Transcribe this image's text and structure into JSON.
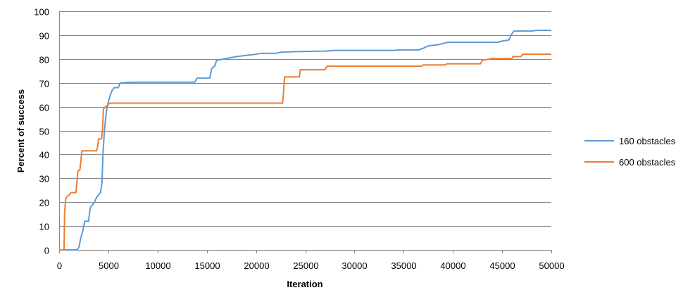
{
  "chart_data": {
    "type": "line",
    "title": "",
    "xlabel": "Iteration",
    "ylabel": "Percent of success",
    "xlim": [
      0,
      50000
    ],
    "ylim": [
      0,
      100
    ],
    "x_ticks": [
      0,
      5000,
      10000,
      15000,
      20000,
      25000,
      30000,
      35000,
      40000,
      45000,
      50000
    ],
    "y_ticks": [
      0,
      10,
      20,
      30,
      40,
      50,
      60,
      70,
      80,
      90,
      100
    ],
    "grid": "horizontal",
    "legend_position": "right",
    "series": [
      {
        "name": "160 obstacles",
        "color": "#5B9BD5",
        "points": [
          [
            0,
            0
          ],
          [
            1800,
            0
          ],
          [
            2000,
            1
          ],
          [
            2100,
            3
          ],
          [
            2200,
            5
          ],
          [
            2400,
            8
          ],
          [
            2500,
            10
          ],
          [
            2600,
            12
          ],
          [
            3000,
            12
          ],
          [
            3100,
            16
          ],
          [
            3200,
            18
          ],
          [
            3400,
            19
          ],
          [
            3600,
            20
          ],
          [
            3800,
            22
          ],
          [
            4000,
            23
          ],
          [
            4200,
            24
          ],
          [
            4350,
            28
          ],
          [
            4450,
            40
          ],
          [
            4600,
            50
          ],
          [
            4800,
            58
          ],
          [
            5000,
            62
          ],
          [
            5200,
            65
          ],
          [
            5400,
            67
          ],
          [
            5600,
            68
          ],
          [
            6000,
            68
          ],
          [
            6200,
            70
          ],
          [
            7000,
            70.2
          ],
          [
            8000,
            70.3
          ],
          [
            13800,
            70.3
          ],
          [
            14000,
            72
          ],
          [
            15300,
            72
          ],
          [
            15500,
            76
          ],
          [
            15800,
            77
          ],
          [
            16000,
            79.5
          ],
          [
            17000,
            80.2
          ],
          [
            18000,
            81
          ],
          [
            19000,
            81.5
          ],
          [
            20000,
            82
          ],
          [
            20500,
            82.4
          ],
          [
            22000,
            82.4
          ],
          [
            22500,
            82.8
          ],
          [
            23500,
            83
          ],
          [
            25000,
            83.2
          ],
          [
            27000,
            83.3
          ],
          [
            28000,
            83.6
          ],
          [
            34000,
            83.6
          ],
          [
            34500,
            83.8
          ],
          [
            36500,
            83.8
          ],
          [
            37000,
            84.5
          ],
          [
            37500,
            85.5
          ],
          [
            38500,
            86
          ],
          [
            39000,
            86.5
          ],
          [
            39500,
            87
          ],
          [
            44500,
            87
          ],
          [
            45000,
            87.5
          ],
          [
            45700,
            88
          ],
          [
            45900,
            90
          ],
          [
            46200,
            91.7
          ],
          [
            48000,
            91.7
          ],
          [
            48500,
            92
          ],
          [
            50000,
            92
          ]
        ]
      },
      {
        "name": "600 obstacles",
        "color": "#ED7D31",
        "points": [
          [
            0,
            0
          ],
          [
            500,
            0
          ],
          [
            550,
            15
          ],
          [
            650,
            21
          ],
          [
            800,
            22.5
          ],
          [
            1000,
            23
          ],
          [
            1200,
            24
          ],
          [
            1700,
            24
          ],
          [
            1800,
            28
          ],
          [
            1900,
            33
          ],
          [
            2100,
            33.5
          ],
          [
            2200,
            37
          ],
          [
            2300,
            41.5
          ],
          [
            3800,
            41.5
          ],
          [
            3900,
            43
          ],
          [
            4000,
            46.5
          ],
          [
            4300,
            46.5
          ],
          [
            4400,
            50
          ],
          [
            4500,
            59
          ],
          [
            4700,
            60
          ],
          [
            4900,
            60.5
          ],
          [
            5100,
            61.5
          ],
          [
            22700,
            61.5
          ],
          [
            22800,
            66
          ],
          [
            22900,
            72.5
          ],
          [
            24400,
            72.5
          ],
          [
            24500,
            75.5
          ],
          [
            27000,
            75.5
          ],
          [
            27200,
            77
          ],
          [
            36800,
            77
          ],
          [
            37000,
            77.5
          ],
          [
            39200,
            77.5
          ],
          [
            39400,
            78
          ],
          [
            42800,
            78
          ],
          [
            43000,
            79.5
          ],
          [
            43500,
            79.8
          ],
          [
            44000,
            80.2
          ],
          [
            46000,
            80.2
          ],
          [
            46100,
            81
          ],
          [
            46900,
            81
          ],
          [
            47100,
            82
          ],
          [
            50000,
            82
          ]
        ]
      }
    ]
  }
}
